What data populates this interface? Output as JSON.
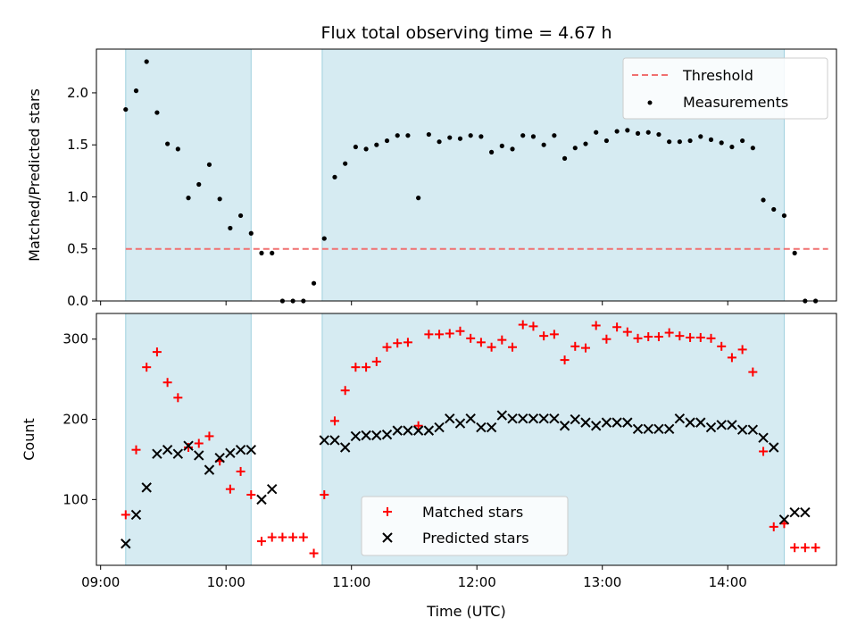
{
  "chart_data": [
    {
      "type": "scatter",
      "title": "Flux total observing time = 4.67 h",
      "ylabel": "Matched/Predicted stars",
      "xlabel": "",
      "ylim": [
        0,
        2.42
      ],
      "xlim": [
        "08:58",
        "14:52"
      ],
      "yticks": [
        "0.0",
        "0.5",
        "1.0",
        "1.5",
        "2.0"
      ],
      "threshold": {
        "name": "Threshold",
        "value": 0.5,
        "x_start": "09:12",
        "x_end": "14:48",
        "color": "#f07070"
      },
      "shaded_intervals": [
        {
          "start": "09:12",
          "end": "10:12"
        },
        {
          "start": "10:46",
          "end": "14:27"
        }
      ],
      "legend": {
        "position": "top-right",
        "entries": [
          "Threshold",
          "Measurements"
        ]
      },
      "series": [
        {
          "name": "Measurements",
          "marker": "dot",
          "color": "#000000",
          "x": [
            "09:12",
            "09:17",
            "09:22",
            "09:27",
            "09:32",
            "09:37",
            "09:42",
            "09:47",
            "09:52",
            "09:57",
            "10:02",
            "10:07",
            "10:12",
            "10:17",
            "10:22",
            "10:27",
            "10:32",
            "10:37",
            "10:42",
            "10:47",
            "10:52",
            "10:57",
            "11:02",
            "11:07",
            "11:12",
            "11:17",
            "11:22",
            "11:27",
            "11:32",
            "11:37",
            "11:42",
            "11:47",
            "11:52",
            "11:57",
            "12:02",
            "12:07",
            "12:12",
            "12:17",
            "12:22",
            "12:27",
            "12:32",
            "12:37",
            "12:42",
            "12:47",
            "12:52",
            "12:57",
            "13:02",
            "13:07",
            "13:12",
            "13:17",
            "13:22",
            "13:27",
            "13:32",
            "13:37",
            "13:42",
            "13:47",
            "13:52",
            "13:57",
            "14:02",
            "14:07",
            "14:12",
            "14:17",
            "14:22",
            "14:27",
            "14:32",
            "14:37",
            "14:42"
          ],
          "y": [
            1.84,
            2.02,
            2.3,
            1.81,
            1.51,
            1.46,
            0.99,
            1.12,
            1.31,
            0.98,
            0.7,
            0.82,
            0.65,
            0.46,
            0.46,
            0.0,
            0.0,
            0.0,
            0.17,
            0.6,
            1.19,
            1.32,
            1.48,
            1.46,
            1.5,
            1.54,
            1.59,
            1.59,
            0.99,
            1.6,
            1.53,
            1.57,
            1.56,
            1.59,
            1.58,
            1.43,
            1.49,
            1.46,
            1.59,
            1.58,
            1.5,
            1.59,
            1.37,
            1.47,
            1.51,
            1.62,
            1.54,
            1.63,
            1.64,
            1.61,
            1.62,
            1.6,
            1.53,
            1.53,
            1.54,
            1.58,
            1.55,
            1.52,
            1.48,
            1.54,
            1.47,
            0.97,
            0.88,
            0.82,
            0.46,
            0.0,
            0.0
          ]
        }
      ]
    },
    {
      "type": "scatter",
      "title": "",
      "ylabel": "Count",
      "xlabel": "Time (UTC)",
      "ylim": [
        18,
        332
      ],
      "xlim": [
        "08:58",
        "14:52"
      ],
      "yticks": [
        "100",
        "200",
        "300"
      ],
      "xticks": [
        "09:00",
        "10:00",
        "11:00",
        "12:00",
        "13:00",
        "14:00"
      ],
      "shaded_intervals": [
        {
          "start": "09:12",
          "end": "10:12"
        },
        {
          "start": "10:46",
          "end": "14:27"
        }
      ],
      "legend": {
        "position": "lower-center",
        "entries": [
          "Matched stars",
          "Predicted stars"
        ]
      },
      "series": [
        {
          "name": "Matched stars",
          "marker": "plus",
          "color": "#ff0000",
          "x": [
            "09:12",
            "09:17",
            "09:22",
            "09:27",
            "09:32",
            "09:37",
            "09:42",
            "09:47",
            "09:52",
            "09:57",
            "10:02",
            "10:07",
            "10:12",
            "10:17",
            "10:22",
            "10:27",
            "10:32",
            "10:37",
            "10:42",
            "10:47",
            "10:52",
            "10:57",
            "11:02",
            "11:07",
            "11:12",
            "11:17",
            "11:22",
            "11:27",
            "11:32",
            "11:37",
            "11:42",
            "11:47",
            "11:52",
            "11:57",
            "12:02",
            "12:07",
            "12:12",
            "12:17",
            "12:22",
            "12:27",
            "12:32",
            "12:37",
            "12:42",
            "12:47",
            "12:52",
            "12:57",
            "13:02",
            "13:07",
            "13:12",
            "13:17",
            "13:22",
            "13:27",
            "13:32",
            "13:37",
            "13:42",
            "13:47",
            "13:52",
            "13:57",
            "14:02",
            "14:07",
            "14:12",
            "14:17",
            "14:22",
            "14:27",
            "14:32",
            "14:37",
            "14:42"
          ],
          "y": [
            81,
            162,
            265,
            284,
            246,
            227,
            165,
            170,
            179,
            148,
            113,
            135,
            106,
            48,
            53,
            53,
            53,
            53,
            33,
            106,
            198,
            236,
            265,
            265,
            272,
            290,
            295,
            296,
            192,
            306,
            306,
            307,
            310,
            301,
            296,
            290,
            299,
            290,
            318,
            316,
            304,
            306,
            274,
            291,
            289,
            317,
            300,
            315,
            309,
            301,
            303,
            303,
            308,
            304,
            302,
            302,
            301,
            291,
            277,
            287,
            259,
            160,
            66,
            70,
            40,
            40,
            40
          ]
        },
        {
          "name": "Predicted stars",
          "marker": "x",
          "color": "#000000",
          "x": [
            "09:12",
            "09:17",
            "09:22",
            "09:27",
            "09:32",
            "09:37",
            "09:42",
            "09:47",
            "09:52",
            "09:57",
            "10:02",
            "10:07",
            "10:12",
            "10:17",
            "10:22",
            "10:47",
            "10:52",
            "10:57",
            "11:02",
            "11:07",
            "11:12",
            "11:17",
            "11:22",
            "11:27",
            "11:32",
            "11:37",
            "11:42",
            "11:47",
            "11:52",
            "11:57",
            "12:02",
            "12:07",
            "12:12",
            "12:17",
            "12:22",
            "12:27",
            "12:32",
            "12:37",
            "12:42",
            "12:47",
            "12:52",
            "12:57",
            "13:02",
            "13:07",
            "13:12",
            "13:17",
            "13:22",
            "13:27",
            "13:32",
            "13:37",
            "13:42",
            "13:47",
            "13:52",
            "13:57",
            "14:02",
            "14:07",
            "14:12",
            "14:17",
            "14:22",
            "14:27",
            "14:32",
            "14:37"
          ],
          "y": [
            45,
            81,
            115,
            157,
            162,
            157,
            167,
            155,
            137,
            152,
            158,
            162,
            162,
            100,
            113,
            174,
            174,
            165,
            179,
            180,
            180,
            181,
            186,
            186,
            186,
            186,
            190,
            201,
            195,
            201,
            190,
            190,
            205,
            201,
            201,
            201,
            201,
            201,
            192,
            200,
            196,
            192,
            196,
            196,
            196,
            188,
            188,
            188,
            188,
            201,
            196,
            196,
            190,
            193,
            193,
            187,
            187,
            177,
            165,
            75,
            84,
            84
          ]
        }
      ]
    }
  ]
}
